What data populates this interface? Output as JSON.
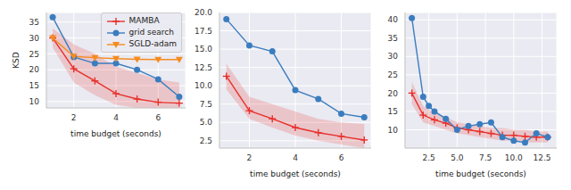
{
  "chart_data": [
    {
      "type": "line",
      "x_label": "time budget (seconds)",
      "y_label": "KSD",
      "grid": true,
      "legend": "upper right",
      "xlim": [
        0.7,
        7.3
      ],
      "xticks": [
        2,
        4,
        6
      ],
      "ylim": [
        8,
        38
      ],
      "yticks": [
        10,
        15,
        20,
        25,
        30,
        35
      ],
      "series": [
        {
          "name": "MAMBA",
          "color": "#e8302b",
          "marker": "plus",
          "x": [
            1,
            2,
            3,
            4,
            5,
            6,
            7
          ],
          "values": [
            30,
            20.3,
            16.5,
            12.5,
            10.8,
            9.8,
            9.5
          ],
          "lower": [
            27,
            16,
            12,
            9,
            8,
            8,
            8
          ],
          "upper": [
            33,
            28,
            25,
            21,
            19,
            17,
            16
          ]
        },
        {
          "name": "grid search",
          "color": "#3a7dbf",
          "marker": "circle",
          "x": [
            1,
            2,
            3,
            4,
            5,
            6,
            7
          ],
          "values": [
            36.5,
            24,
            22,
            22,
            20,
            17,
            11.5
          ]
        },
        {
          "name": "SGLD-adam",
          "color": "#f58b1f",
          "marker": "triangle_down",
          "x": [
            1,
            2,
            3,
            4,
            5,
            6,
            7
          ],
          "values": [
            30,
            24.2,
            23.8,
            23.5,
            23.3,
            23.2,
            23.2
          ]
        }
      ]
    },
    {
      "type": "line",
      "x_label": "time budget (seconds)",
      "grid": true,
      "xlim": [
        0.7,
        7.3
      ],
      "xticks": [
        2,
        4,
        6
      ],
      "ylim": [
        1.5,
        20
      ],
      "yticks": [
        {
          "value": 2.5,
          "label": "2.5"
        },
        {
          "value": 5,
          "label": "5.0"
        },
        {
          "value": 7.5,
          "label": "7.5"
        },
        {
          "value": 10,
          "label": "10.0"
        },
        {
          "value": 12.5,
          "label": "12.5"
        },
        {
          "value": 15,
          "label": "15.0"
        },
        {
          "value": 17.5,
          "label": "17.5"
        },
        {
          "value": 20,
          "label": "20.0"
        }
      ],
      "series": [
        {
          "name": "MAMBA",
          "color": "#e8302b",
          "marker": "plus",
          "x": [
            1,
            2,
            3,
            4,
            5,
            6,
            7
          ],
          "values": [
            11.3,
            6.6,
            5.5,
            4.3,
            3.6,
            3.1,
            2.6
          ],
          "lower": [
            9.5,
            5.5,
            4.3,
            3.2,
            2.5,
            2,
            1.5
          ],
          "upper": [
            13,
            8.5,
            7.5,
            6.5,
            5.5,
            5,
            4.8
          ]
        },
        {
          "name": "grid search",
          "color": "#3a7dbf",
          "marker": "circle",
          "x": [
            1,
            2,
            3,
            4,
            5,
            6,
            7
          ],
          "values": [
            19.1,
            15.5,
            14.7,
            9.4,
            8.2,
            6.2,
            5.7
          ]
        }
      ]
    },
    {
      "type": "line",
      "x_label": "time budget (seconds)",
      "grid": true,
      "xlim": [
        0.4,
        13.8
      ],
      "xticks": [
        {
          "value": 2.5,
          "label": "2.5"
        },
        {
          "value": 5,
          "label": "5.0"
        },
        {
          "value": 7.5,
          "label": "7.5"
        },
        {
          "value": 10,
          "label": "10.0"
        },
        {
          "value": 12.5,
          "label": "12.5"
        }
      ],
      "ylim": [
        5,
        42
      ],
      "yticks": [
        10,
        15,
        20,
        25,
        30,
        35,
        40
      ],
      "series": [
        {
          "name": "MAMBA",
          "color": "#e8302b",
          "marker": "plus",
          "x": [
            1,
            2,
            3,
            4,
            5,
            6,
            7,
            8,
            9,
            10,
            11,
            12,
            13
          ],
          "values": [
            20,
            14,
            12.7,
            11.8,
            10.5,
            10,
            9.5,
            9,
            8.5,
            8.5,
            8.2,
            8,
            8
          ],
          "lower": [
            17,
            12,
            11,
            10,
            9,
            8.5,
            8,
            7.5,
            7,
            7,
            6.5,
            6.5,
            6.5
          ],
          "upper": [
            23,
            16.5,
            14.5,
            13.5,
            12,
            11.5,
            11,
            10.5,
            10.5,
            10,
            10,
            9.5,
            9.5
          ]
        },
        {
          "name": "grid search",
          "color": "#3a7dbf",
          "marker": "circle",
          "x": [
            1,
            2,
            2.5,
            3,
            4,
            5,
            6,
            7,
            8,
            9,
            10,
            11,
            12,
            13
          ],
          "values": [
            40.5,
            19,
            16.5,
            15,
            13,
            10,
            11,
            11.5,
            12,
            8,
            7,
            6.5,
            9,
            8
          ]
        }
      ]
    }
  ]
}
